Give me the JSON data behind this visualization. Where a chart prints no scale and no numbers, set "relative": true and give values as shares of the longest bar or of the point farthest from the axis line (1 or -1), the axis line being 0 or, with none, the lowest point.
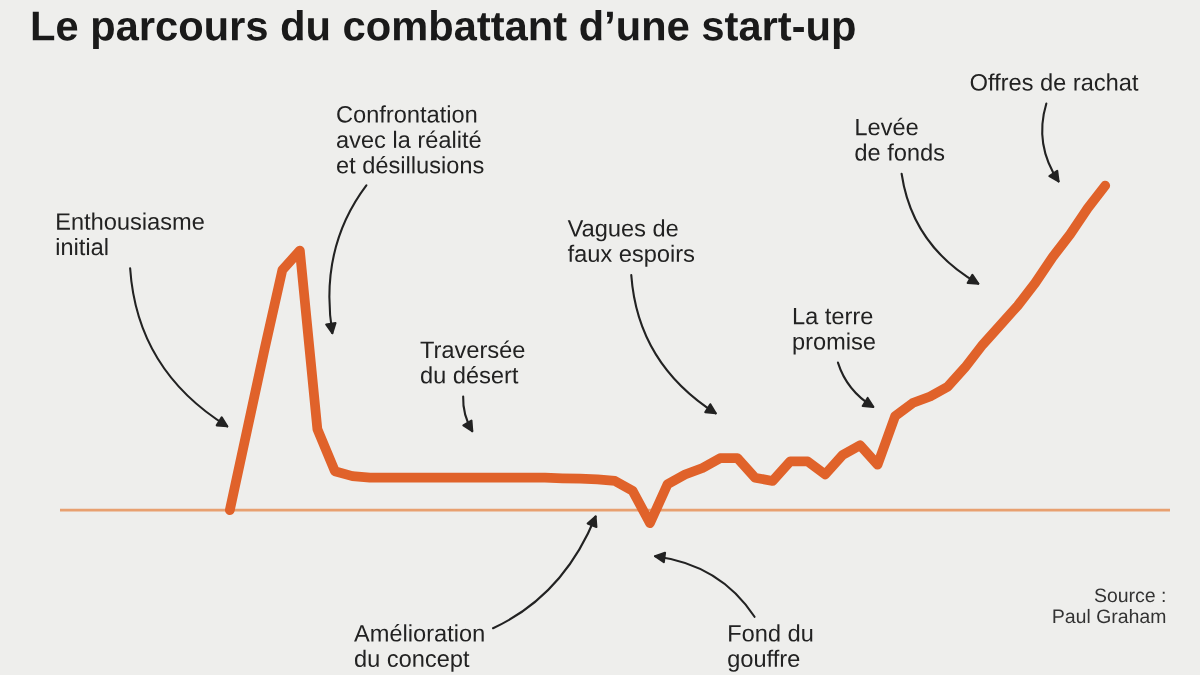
{
  "chart_data": {
    "type": "line",
    "title": "Le parcours du combattant d’une start-up",
    "relative": true,
    "categories": [
      null,
      null,
      null,
      null,
      null,
      null,
      null,
      null,
      null,
      null,
      null,
      null,
      null,
      null,
      null,
      null,
      null,
      null,
      null,
      null,
      null,
      null,
      null,
      null,
      null,
      null,
      null,
      null,
      null,
      null,
      null,
      null,
      null,
      null,
      null,
      null,
      null,
      null,
      null,
      null,
      null,
      null,
      null,
      null,
      null,
      null,
      null,
      null,
      null,
      null,
      null
    ],
    "series": [
      {
        "color": "#e0622a",
        "values": [
          0,
          0.25,
          0.5,
          0.74,
          0.8,
          0.25,
          0.12,
          0.105,
          0.1,
          0.1,
          0.1,
          0.1,
          0.1,
          0.1,
          0.1,
          0.1,
          0.1,
          0.1,
          0.1,
          0.098,
          0.097,
          0.095,
          0.09,
          0.06,
          -0.04,
          0.08,
          0.11,
          0.13,
          0.16,
          0.16,
          0.1,
          0.09,
          0.15,
          0.15,
          0.11,
          0.17,
          0.2,
          0.14,
          0.29,
          0.33,
          0.35,
          0.38,
          0.44,
          0.51,
          0.57,
          0.63,
          0.7,
          0.78,
          0.85,
          0.93,
          1.0
        ]
      }
    ],
    "marker": "none",
    "line_style": "solid",
    "legend": false,
    "ref_lines": [
      {
        "axis": "y",
        "value": 0,
        "color": "#e8a070",
        "line_style": "solid"
      }
    ],
    "annotations": [
      "Enthousiasme\ninitial",
      "Confrontation\navec la réalité\net désillusions",
      "Traversée\ndu désert",
      "Vagues de\nfaux espoirs",
      "La terre\npromise",
      "Levée\nde fonds",
      "Offres de rachat",
      "Amélioration\ndu concept",
      "Fond du\ngouffre",
      "Source :\nPaul Graham"
    ]
  }
}
